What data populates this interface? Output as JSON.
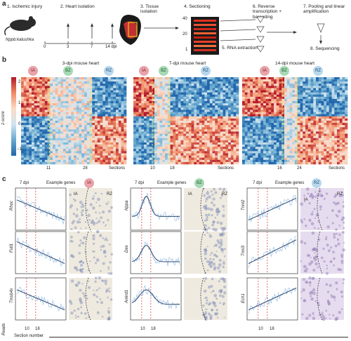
{
  "panel_a": {
    "label": "a",
    "steps": [
      "1. Ischemic injury",
      "2. Heart isolation",
      "3. Tissue isolation",
      "4. Sectioning",
      "5. RNA extraction",
      "6. Reverse transcription + barcoding",
      "7. Pooling and linear amplification",
      "8. Sequencing"
    ],
    "mouse_label": "Nppb:katushka",
    "timeline_ticks": [
      "0",
      "3",
      "7",
      "14 dpi"
    ],
    "section_ticks": [
      "40",
      "20",
      "1"
    ]
  },
  "panel_b": {
    "label": "b",
    "colorbar_label": "z-score",
    "colorbar_ticks": [
      "2",
      "1",
      "0",
      "−1"
    ],
    "heatmaps": [
      {
        "title": "3-dpi mouse heart",
        "boundaries": [
          "11",
          "28"
        ],
        "xlabel": "Sections"
      },
      {
        "title": "7-dpi mouse heart",
        "boundaries": [
          "10",
          "18"
        ],
        "xlabel": "Sections"
      },
      {
        "title": "14-dpi mouse heart",
        "boundaries": [
          "16",
          "24"
        ],
        "xlabel": "Sections"
      }
    ],
    "zones": [
      "IA",
      "BZ",
      "RZ"
    ]
  },
  "panel_c": {
    "label": "c",
    "day": "7 dpi",
    "header": "Example genes",
    "groups": [
      {
        "zone": "IA",
        "genes": [
          "Rhoc",
          "Fstl1",
          "Tmsb4x"
        ],
        "tags": [
          "IA",
          "RZ"
        ]
      },
      {
        "zone": "BZ",
        "genes": [
          "Nppa",
          "Des",
          "Ankrd1"
        ],
        "tags": [
          "IA",
          "RZ"
        ]
      },
      {
        "zone": "RZ",
        "genes": [
          "Tnnt2",
          "Tnni3",
          "Ech1"
        ],
        "tags": [
          "IA",
          "RZ"
        ]
      }
    ],
    "ticks": [
      "10",
      "18"
    ],
    "ylabel": "Reads",
    "xlabel": "Section number"
  }
}
